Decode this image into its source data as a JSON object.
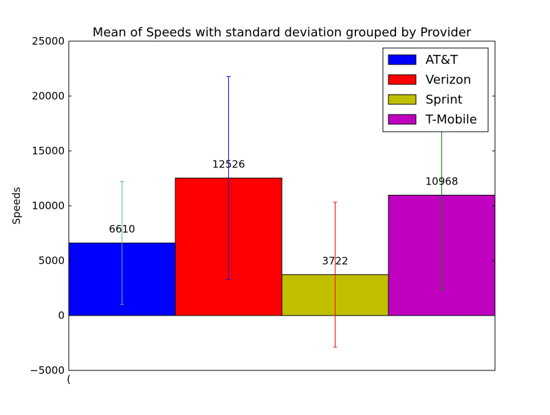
{
  "chart_data": {
    "type": "bar",
    "title": "Mean of Speeds with standard deviation grouped by Provider",
    "xlabel": "",
    "ylabel": "Speeds",
    "ylim": [
      -5000,
      25000
    ],
    "yticks": [
      -5000,
      0,
      5000,
      10000,
      15000,
      20000,
      25000
    ],
    "ytick_labels": [
      "−5000",
      "0",
      "5000",
      "10000",
      "15000",
      "20000",
      "25000"
    ],
    "xtick_labels": [
      "("
    ],
    "grid": false,
    "legend_position": "top-right",
    "series": [
      {
        "name": "AT&T",
        "value": 6610,
        "std": 5600,
        "color": "#0000ff",
        "error_color": "#40c0a0",
        "label": "6610"
      },
      {
        "name": "Verizon",
        "value": 12526,
        "std": 9250,
        "color": "#ff0000",
        "error_color": "#0000ff",
        "label": "12526"
      },
      {
        "name": "Sprint",
        "value": 3722,
        "std": 6600,
        "color": "#bfbf00",
        "error_color": "#ff0000",
        "label": "3722"
      },
      {
        "name": "T-Mobile",
        "value": 10968,
        "std": 8600,
        "color": "#bf00bf",
        "error_color": "#008000",
        "label": "10968"
      }
    ]
  }
}
